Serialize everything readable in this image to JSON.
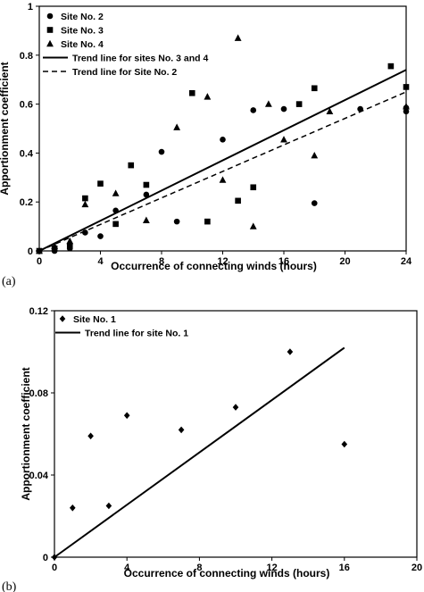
{
  "chart_data": [
    {
      "type": "scatter",
      "panel_label": "(a)",
      "xlabel": "Occurrence of connecting winds (hours)",
      "ylabel": "Apportionment coefficient",
      "xlim": [
        0,
        24
      ],
      "ylim": [
        0,
        1
      ],
      "x_ticks": [
        0,
        4,
        8,
        12,
        16,
        20,
        24
      ],
      "y_ticks": [
        0,
        0.2,
        0.4,
        0.6,
        0.8,
        1
      ],
      "x_tick_labels": [
        "0",
        "4",
        "8",
        "12",
        "16",
        "20",
        "24"
      ],
      "y_tick_labels": [
        "0",
        "0.2",
        "0.4",
        "0.6",
        "0.8",
        "1"
      ],
      "legend_position": "top-left",
      "grid": false,
      "series": [
        {
          "name": "Site No. 2",
          "marker": "circle",
          "points": [
            [
              0,
              0
            ],
            [
              1,
              0
            ],
            [
              2,
              0.01
            ],
            [
              3,
              0.075
            ],
            [
              4,
              0.06
            ],
            [
              5,
              0.165
            ],
            [
              7,
              0.23
            ],
            [
              8,
              0.405
            ],
            [
              9,
              0.12
            ],
            [
              12,
              0.455
            ],
            [
              14,
              0.575
            ],
            [
              16,
              0.58
            ],
            [
              18,
              0.195
            ],
            [
              21,
              0.58
            ],
            [
              24,
              0.585
            ],
            [
              24,
              0.57
            ]
          ]
        },
        {
          "name": "Site No. 3",
          "marker": "square",
          "points": [
            [
              0,
              0
            ],
            [
              1,
              0.01
            ],
            [
              2,
              0.02
            ],
            [
              3,
              0.215
            ],
            [
              4,
              0.275
            ],
            [
              5,
              0.11
            ],
            [
              6,
              0.35
            ],
            [
              7,
              0.27
            ],
            [
              10,
              0.645
            ],
            [
              11,
              0.12
            ],
            [
              13,
              0.205
            ],
            [
              14,
              0.26
            ],
            [
              17,
              0.6
            ],
            [
              18,
              0.665
            ],
            [
              23,
              0.755
            ],
            [
              24,
              0.67
            ]
          ]
        },
        {
          "name": "Site No. 4",
          "marker": "triangle",
          "points": [
            [
              0,
              0
            ],
            [
              1,
              0.02
            ],
            [
              2,
              0.04
            ],
            [
              3,
              0.19
            ],
            [
              5,
              0.235
            ],
            [
              7,
              0.125
            ],
            [
              9,
              0.505
            ],
            [
              11,
              0.63
            ],
            [
              12,
              0.29
            ],
            [
              13,
              0.87
            ],
            [
              14,
              0.1
            ],
            [
              15,
              0.6
            ],
            [
              16,
              0.455
            ],
            [
              18,
              0.39
            ],
            [
              19,
              0.57
            ],
            [
              24,
              0.59
            ]
          ]
        },
        {
          "name": "Trend line for sites No. 3 and 4",
          "line_style": "solid",
          "points": [
            [
              0,
              0
            ],
            [
              24,
              0.74
            ]
          ]
        },
        {
          "name": "Trend line for Site No. 2",
          "line_style": "dashed",
          "points": [
            [
              0,
              0
            ],
            [
              24,
              0.65
            ]
          ]
        }
      ]
    },
    {
      "type": "scatter",
      "panel_label": "(b)",
      "xlabel": "Occurrence of connecting winds (hours)",
      "ylabel": "Apportionment coefficient",
      "xlim": [
        0,
        20
      ],
      "ylim": [
        0,
        0.12
      ],
      "x_ticks": [
        0,
        4,
        8,
        12,
        16,
        20
      ],
      "y_ticks": [
        0,
        0.04,
        0.08,
        0.12
      ],
      "x_tick_labels": [
        "0",
        "4",
        "8",
        "12",
        "16",
        "20"
      ],
      "y_tick_labels": [
        "0",
        "0.04",
        "0.08",
        "0.12"
      ],
      "legend_position": "top-left",
      "grid": false,
      "series": [
        {
          "name": "Site No. 1",
          "marker": "diamond",
          "points": [
            [
              0,
              0
            ],
            [
              1,
              0.024
            ],
            [
              2,
              0.059
            ],
            [
              3,
              0.025
            ],
            [
              4,
              0.069
            ],
            [
              7,
              0.062
            ],
            [
              10,
              0.073
            ],
            [
              13,
              0.1
            ],
            [
              16,
              0.055
            ]
          ]
        },
        {
          "name": "Trend line for site No. 1",
          "line_style": "solid",
          "points": [
            [
              0,
              0
            ],
            [
              16,
              0.102
            ]
          ]
        }
      ]
    }
  ]
}
